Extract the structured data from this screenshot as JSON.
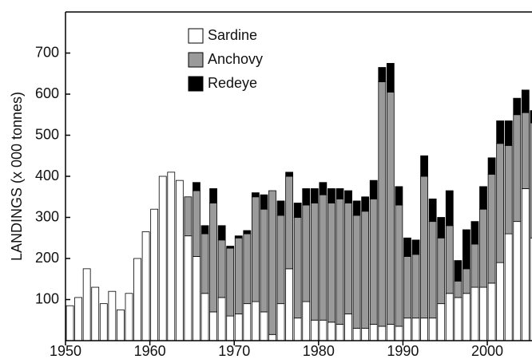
{
  "chart_data": {
    "type": "stacked_bar",
    "ylabel": "LANDINGS (x 000 tonnes)",
    "x": [
      1950,
      1951,
      1952,
      1953,
      1954,
      1955,
      1956,
      1957,
      1958,
      1959,
      1960,
      1961,
      1962,
      1963,
      1964,
      1965,
      1966,
      1967,
      1968,
      1969,
      1970,
      1971,
      1972,
      1973,
      1974,
      1975,
      1976,
      1977,
      1978,
      1979,
      1980,
      1981,
      1982,
      1983,
      1984,
      1985,
      1986,
      1987,
      1988,
      1989,
      1990,
      1991,
      1992,
      1993,
      1994,
      1995,
      1996,
      1997,
      1998,
      1999,
      2000,
      2001,
      2002,
      2003,
      2004,
      2005
    ],
    "series": [
      {
        "name": "Sardine",
        "color": "#ffffff",
        "values": [
          85,
          105,
          175,
          130,
          90,
          120,
          75,
          115,
          200,
          265,
          320,
          400,
          410,
          390,
          255,
          205,
          115,
          70,
          105,
          60,
          65,
          90,
          95,
          70,
          15,
          90,
          175,
          55,
          95,
          50,
          50,
          45,
          40,
          65,
          30,
          30,
          40,
          35,
          40,
          35,
          55,
          55,
          55,
          55,
          90,
          115,
          105,
          115,
          130,
          130,
          140,
          190,
          260,
          290,
          370,
          250
        ]
      },
      {
        "name": "Anchovy",
        "color": "#9a9a9a",
        "values": [
          0,
          0,
          0,
          0,
          0,
          0,
          0,
          0,
          0,
          0,
          0,
          0,
          0,
          0,
          95,
          160,
          145,
          265,
          140,
          165,
          185,
          170,
          255,
          250,
          350,
          215,
          225,
          245,
          235,
          285,
          305,
          290,
          305,
          270,
          275,
          285,
          305,
          595,
          565,
          295,
          150,
          155,
          345,
          235,
          160,
          165,
          40,
          60,
          105,
          190,
          265,
          290,
          215,
          260,
          185,
          280
        ]
      },
      {
        "name": "Redeye",
        "color": "#000000",
        "values": [
          0,
          0,
          0,
          0,
          0,
          0,
          0,
          0,
          0,
          0,
          0,
          0,
          0,
          0,
          0,
          20,
          20,
          35,
          35,
          5,
          5,
          8,
          10,
          35,
          0,
          35,
          10,
          35,
          40,
          35,
          30,
          35,
          25,
          30,
          35,
          35,
          45,
          35,
          70,
          45,
          45,
          35,
          50,
          55,
          50,
          85,
          50,
          95,
          55,
          55,
          40,
          55,
          60,
          40,
          55,
          30
        ]
      }
    ],
    "xlim": [
      1950,
      2005.3
    ],
    "xticks": [
      1950,
      1960,
      1970,
      1980,
      1990,
      2000
    ],
    "ylim": [
      0,
      800
    ],
    "yticks": [
      100,
      200,
      300,
      400,
      500,
      600,
      700
    ],
    "legend": "upper left"
  }
}
